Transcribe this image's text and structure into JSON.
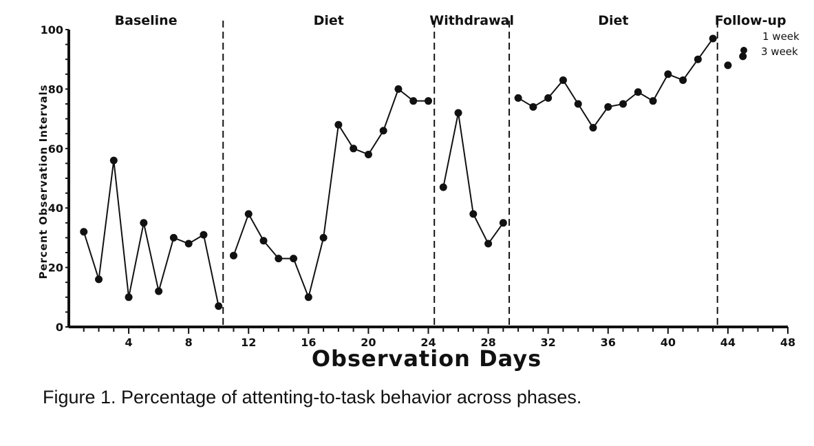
{
  "chart_data": {
    "type": "line",
    "xlabel": "Observation Days",
    "ylabel_words": [
      "Percent",
      "Observation",
      "Intervals"
    ],
    "xlim": [
      0,
      48
    ],
    "ylim": [
      0,
      100
    ],
    "x_ticks": [
      4,
      8,
      12,
      16,
      20,
      24,
      28,
      32,
      36,
      40,
      44,
      48
    ],
    "y_ticks": [
      0,
      20,
      40,
      60,
      80,
      100
    ],
    "phase_lines": [
      10.3,
      24.4,
      29.4,
      43.3
    ],
    "phases": [
      {
        "name": "Baseline",
        "x": [
          1,
          2,
          3,
          4,
          5,
          6,
          7,
          8,
          9,
          10
        ],
        "y": [
          32,
          16,
          56,
          10,
          35,
          12,
          30,
          28,
          31,
          7
        ]
      },
      {
        "name": "Diet",
        "x": [
          11,
          12,
          13,
          14,
          15,
          16,
          17,
          18,
          19,
          20,
          21,
          22,
          23,
          24
        ],
        "y": [
          24,
          38,
          29,
          23,
          23,
          10,
          30,
          68,
          60,
          58,
          66,
          80,
          76,
          76
        ]
      },
      {
        "name": "Withdrawal",
        "x": [
          25,
          26,
          27,
          28,
          29
        ],
        "y": [
          47,
          72,
          38,
          28,
          35
        ]
      },
      {
        "name": "Diet",
        "x": [
          30,
          31,
          32,
          33,
          34,
          35,
          36,
          37,
          38,
          39,
          40,
          41,
          42,
          43
        ],
        "y": [
          77,
          74,
          77,
          83,
          75,
          67,
          74,
          75,
          79,
          76,
          85,
          83,
          90,
          97
        ]
      },
      {
        "name": "Follow-up",
        "x": [
          44,
          45
        ],
        "y": [
          88,
          91
        ],
        "connected": false
      }
    ],
    "legend": [
      "1 week",
      "3 week"
    ]
  },
  "caption": "Figure 1.  Percentage of attenting-to-task behavior across phases."
}
